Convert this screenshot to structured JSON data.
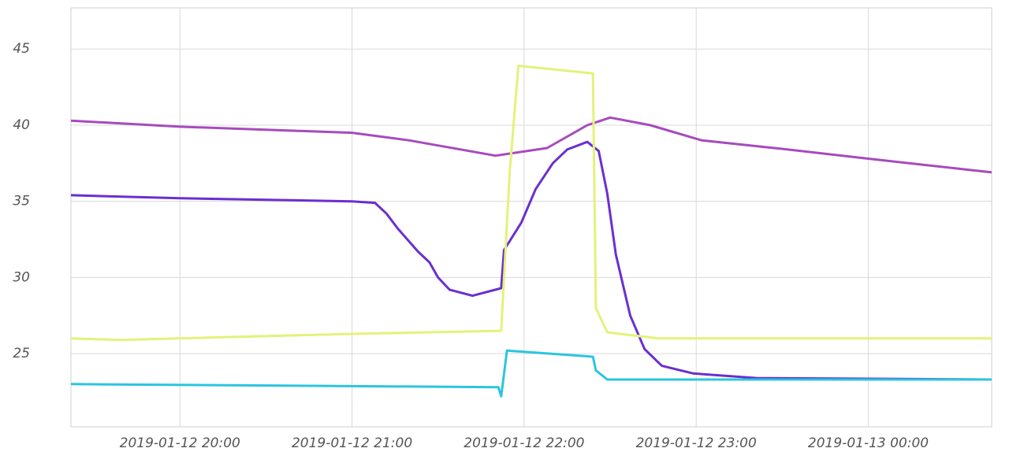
{
  "chart_data": {
    "type": "line",
    "xlim": [
      "2019-01-12 19:22",
      "2019-01-13 00:43"
    ],
    "xticks": [
      "2019-01-12 20:00",
      "2019-01-12 21:00",
      "2019-01-12 22:00",
      "2019-01-12 23:00",
      "2019-01-13 00:00"
    ],
    "ylim": [
      20.2,
      47.7
    ],
    "yticks": [
      25,
      30,
      35,
      40,
      45
    ],
    "grid": true,
    "series": [
      {
        "color": "#a64bbd",
        "x": [
          "2019-01-12 19:22",
          "2019-01-12 20:00",
          "2019-01-12 21:00",
          "2019-01-12 21:20",
          "2019-01-12 21:50",
          "2019-01-12 22:08",
          "2019-01-12 22:22",
          "2019-01-12 22:30",
          "2019-01-12 22:44",
          "2019-01-12 23:02",
          "2019-01-12 23:32",
          "2019-01-13 00:00",
          "2019-01-13 00:43"
        ],
        "values": [
          40.3,
          39.9,
          39.5,
          39.0,
          38.0,
          38.5,
          40.0,
          40.5,
          40.0,
          39.0,
          38.4,
          37.8,
          36.9
        ]
      },
      {
        "color": "#6a2fd0",
        "x": [
          "2019-01-12 19:22",
          "2019-01-12 20:00",
          "2019-01-12 21:00",
          "2019-01-12 21:08",
          "2019-01-12 21:12",
          "2019-01-12 21:16",
          "2019-01-12 21:23",
          "2019-01-12 21:27",
          "2019-01-12 21:30",
          "2019-01-12 21:34",
          "2019-01-12 21:42",
          "2019-01-12 21:52",
          "2019-01-12 21:53",
          "2019-01-12 21:59",
          "2019-01-12 22:04",
          "2019-01-12 22:10",
          "2019-01-12 22:15",
          "2019-01-12 22:22",
          "2019-01-12 22:26",
          "2019-01-12 22:29",
          "2019-01-12 22:32",
          "2019-01-12 22:37",
          "2019-01-12 22:42",
          "2019-01-12 22:48",
          "2019-01-12 22:59",
          "2019-01-12 23:21",
          "2019-01-13 00:43"
        ],
        "values": [
          35.4,
          35.2,
          35.0,
          34.9,
          34.2,
          33.2,
          31.7,
          31.0,
          30.0,
          29.2,
          28.8,
          29.3,
          31.8,
          33.6,
          35.8,
          37.5,
          38.4,
          38.9,
          38.3,
          35.5,
          31.5,
          27.5,
          25.3,
          24.2,
          23.7,
          23.4,
          23.3
        ]
      },
      {
        "color": "#e3f27a",
        "x": [
          "2019-01-12 19:22",
          "2019-01-12 19:39",
          "2019-01-12 21:00",
          "2019-01-12 21:52",
          "2019-01-12 21:55",
          "2019-01-12 21:58",
          "2019-01-12 22:24",
          "2019-01-12 22:25",
          "2019-01-12 22:29",
          "2019-01-12 22:47",
          "2019-01-13 00:43"
        ],
        "values": [
          26.0,
          25.9,
          26.3,
          26.5,
          37.0,
          43.9,
          43.4,
          28.0,
          26.4,
          26.0,
          26.0
        ]
      },
      {
        "color": "#2bc5e0",
        "x": [
          "2019-01-12 19:22",
          "2019-01-12 21:51",
          "2019-01-12 21:52",
          "2019-01-12 21:54",
          "2019-01-12 22:24",
          "2019-01-12 22:25",
          "2019-01-12 22:29",
          "2019-01-13 00:43"
        ],
        "values": [
          23.0,
          22.8,
          22.2,
          25.2,
          24.8,
          23.9,
          23.3,
          23.3
        ]
      }
    ]
  }
}
